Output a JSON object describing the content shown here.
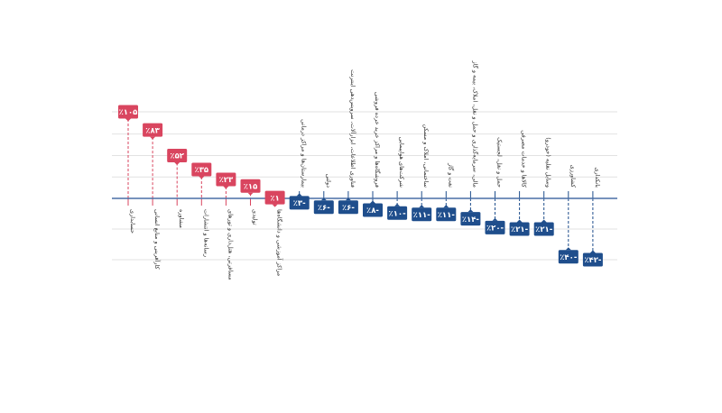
{
  "chart_data": {
    "type": "bar",
    "title": "",
    "xlabel": "",
    "ylabel": "",
    "ylim": [
      -65,
      110
    ],
    "grid": true,
    "categories": [
      "حسابداری",
      "کارآفرینی و منابع انسانی",
      "مشاوره",
      "رسانه‌ها و انتشارات",
      "مسافرتی، هتل‌داری و تورهای",
      "تولیدی",
      "مراکز آموزشی و دانشگاه‌ها",
      "بیمارستان‌ها و مراکز درمانی",
      "دولتی",
      "فناوری اطلاعات، ابزارآلات، سرویس‌دهی اینترنت",
      "فروشگاه‌ها و مراکز خرید خرده فروشی",
      "شرکت‌های هواپیمایی",
      "ساختمانی، املاک و مسکن",
      "نفت و گاز",
      "مالی، سرمایه‌گذاری و حمل و نقل، املاک، بیمه و گاز",
      "حمل و نقل، لجستیک",
      "کالاها و خدمات مصرفی",
      "وسایل نقلیه (خودرو)",
      "کشاورزی",
      "بانکداری"
    ],
    "values": [
      105,
      83,
      52,
      35,
      23,
      15,
      1,
      -3,
      -6,
      -6,
      -8,
      -10,
      -11,
      -11,
      -14,
      -20,
      -21,
      -21,
      -40,
      -42
    ],
    "value_labels": [
      "٪۱۰۵",
      "٪۸۳",
      "٪۵۲",
      "٪۳۵",
      "٪۲۳",
      "٪۱۵",
      "٪۱",
      "-٪۳",
      "-٪۶",
      "-٪۶",
      "-٪۸",
      "-٪۱۰",
      "-٪۱۱",
      "-٪۱۱",
      "-٪۱۴",
      "-٪۲۰",
      "-٪۲۱",
      "-٪۲۱",
      "-٪۴۰",
      "-٪۴۲"
    ],
    "colors": {
      "positive": "#d9455f",
      "negative": "#1f4e8c",
      "axis": "#4a6fa5",
      "grid": "#e2e2e2",
      "label": "#333333"
    }
  }
}
